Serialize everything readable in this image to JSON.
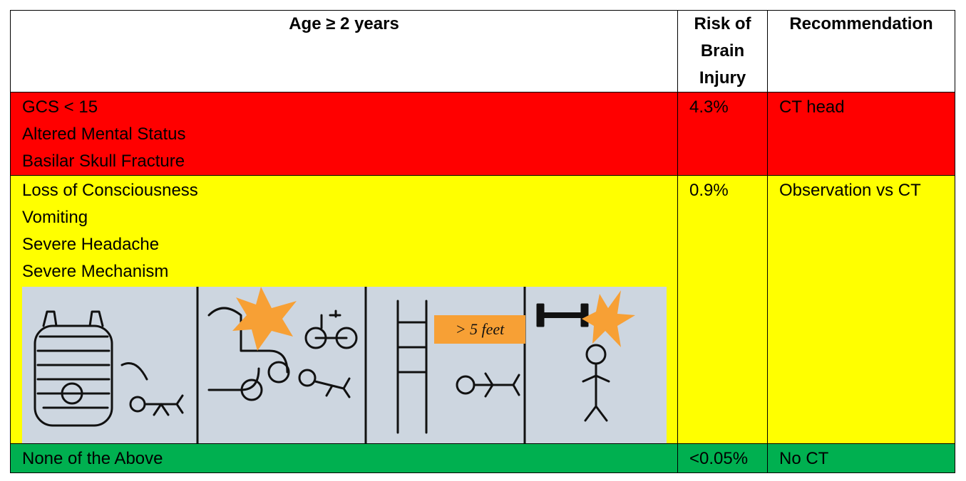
{
  "table": {
    "header": [
      "Age ≥ 2 years",
      "Risk of Brain Injury",
      "Recommendation"
    ],
    "rows": [
      {
        "criteria": [
          "GCS < 15",
          "Altered Mental Status",
          "Basilar Skull Fracture"
        ],
        "risk": "4.3%",
        "recommendation": "CT head",
        "color": "#ff0000"
      },
      {
        "criteria": [
          "Loss of Consciousness",
          "Vomiting",
          "Severe Headache",
          "Severe Mechanism"
        ],
        "risk": "0.9%",
        "recommendation": "Observation vs CT",
        "color": "#ffff00"
      },
      {
        "criteria": [
          "None of the Above"
        ],
        "risk": "<0.05%",
        "recommendation": "No CT",
        "color": "#00b050"
      }
    ]
  },
  "illustration": {
    "label": "> 5 feet"
  }
}
